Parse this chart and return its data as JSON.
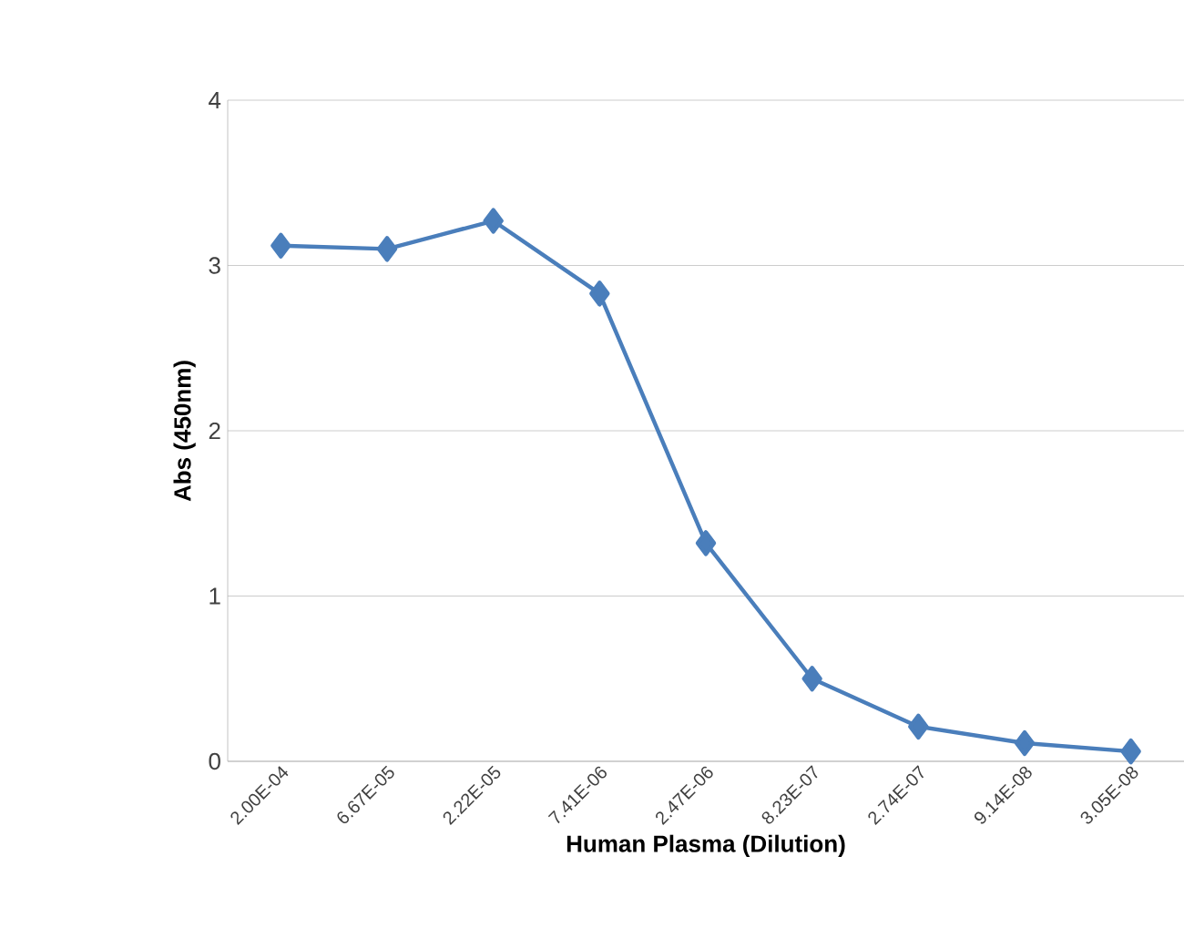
{
  "chart_data": {
    "type": "line",
    "xlabel": "Human Plasma (Dilution)",
    "ylabel": "Abs (450nm)",
    "categories": [
      "2.00E-04",
      "6.67E-05",
      "2.22E-05",
      "7.41E-06",
      "2.47E-06",
      "8.23E-07",
      "2.74E-07",
      "9.14E-08",
      "3.05E-08"
    ],
    "series": [
      {
        "color": "#4a7ebb",
        "values": [
          3.12,
          3.1,
          3.27,
          2.83,
          1.32,
          0.5,
          0.21,
          0.11,
          0.06
        ]
      }
    ],
    "ylim": [
      0,
      4
    ],
    "yticks": [
      0,
      1,
      2,
      3,
      4
    ],
    "grid": "y",
    "marker": "diamond",
    "line_style": "solid"
  }
}
